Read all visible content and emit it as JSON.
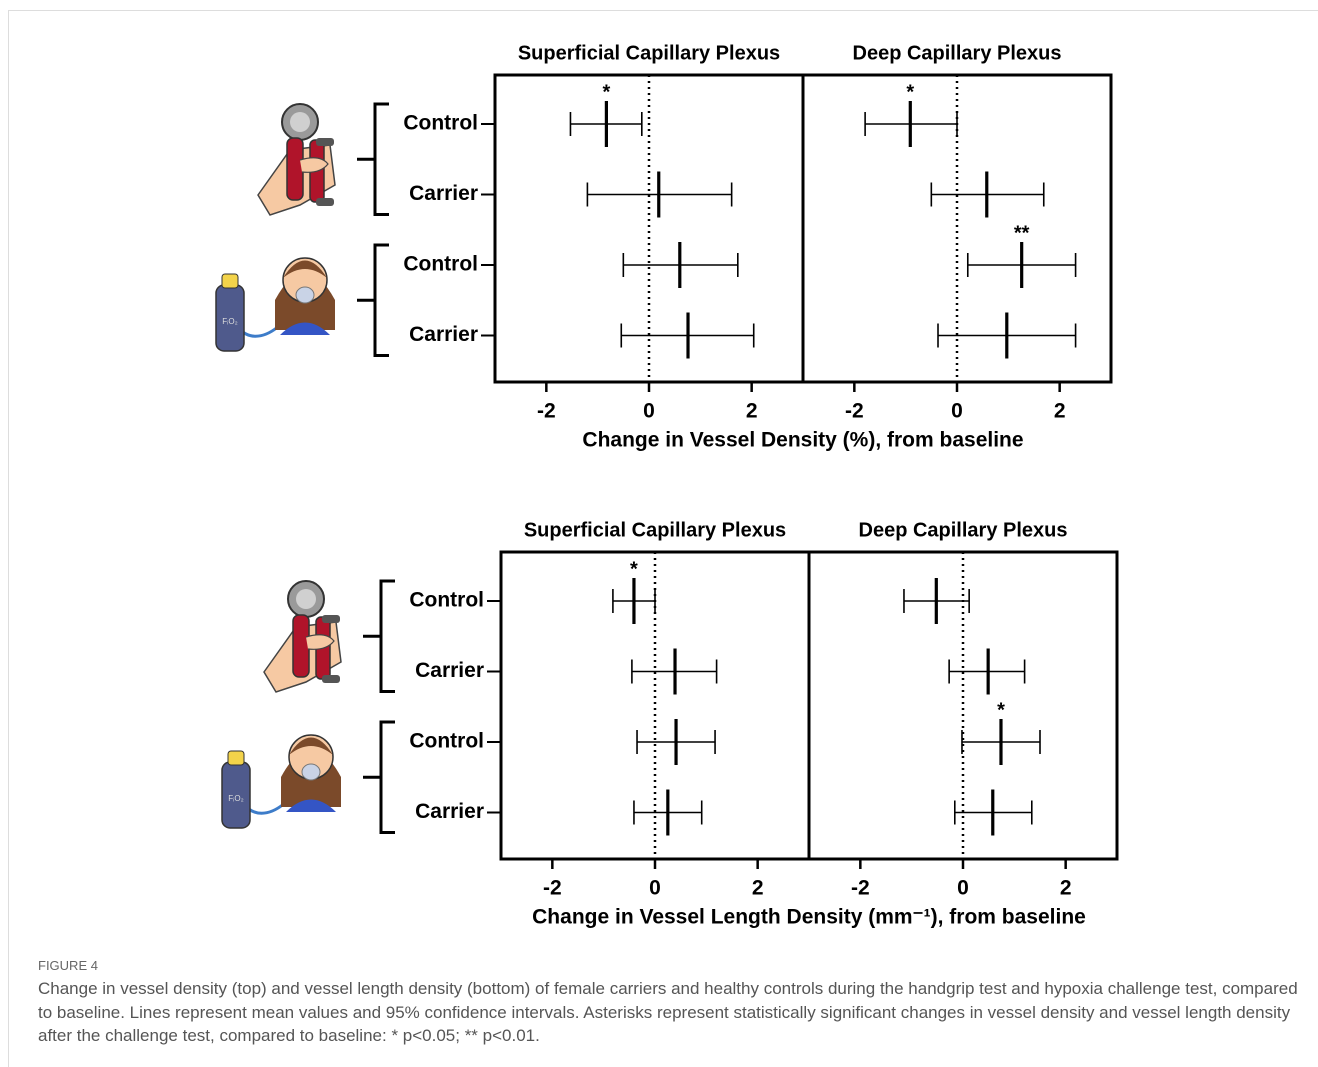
{
  "chart_data": [
    {
      "type": "forest",
      "xlabel": "Change in Vessel Density (%), from baseline",
      "categories": [
        "Control",
        "Carrier",
        "Control",
        "Carrier"
      ],
      "xlim": [
        -3,
        3
      ],
      "xticks": [
        -2,
        0,
        2
      ],
      "zero_line": true,
      "color": "#000000",
      "panels": [
        {
          "title": "Superficial Capillary Plexus",
          "values": [
            -0.83,
            0.19,
            0.6,
            0.76
          ],
          "lower": [
            -1.53,
            -1.2,
            -0.5,
            -0.54
          ],
          "upper": [
            -0.14,
            1.61,
            1.73,
            2.04
          ],
          "annotations": [
            "*",
            null,
            null,
            null
          ]
        },
        {
          "title": "Deep Capillary Plexus",
          "values": [
            -0.91,
            0.58,
            1.26,
            0.97
          ],
          "lower": [
            -1.79,
            -0.5,
            0.21,
            -0.37
          ],
          "upper": [
            0,
            1.69,
            2.31,
            2.31
          ],
          "annotations": [
            "*",
            null,
            "**",
            null
          ]
        }
      ]
    },
    {
      "type": "forest",
      "xlabel": "Change in Vessel Length Density (mm⁻¹), from baseline",
      "categories": [
        "Control",
        "Carrier",
        "Control",
        "Carrier"
      ],
      "xlim": [
        -3,
        3
      ],
      "xticks": [
        -2,
        0,
        2
      ],
      "zero_line": true,
      "color": "#000000",
      "panels": [
        {
          "title": "Superficial Capillary Plexus",
          "values": [
            -0.41,
            0.39,
            0.41,
            0.25
          ],
          "lower": [
            -0.82,
            -0.45,
            -0.35,
            -0.41
          ],
          "upper": [
            0,
            1.2,
            1.17,
            0.91
          ],
          "annotations": [
            "*",
            null,
            null,
            null
          ]
        },
        {
          "title": "Deep Capillary Plexus",
          "values": [
            -0.52,
            0.49,
            0.74,
            0.58
          ],
          "lower": [
            -1.15,
            -0.27,
            -0.02,
            -0.16
          ],
          "upper": [
            0.12,
            1.2,
            1.5,
            1.34
          ],
          "annotations": [
            null,
            null,
            "*",
            null
          ]
        }
      ]
    }
  ],
  "figure": {
    "label": "FIGURE 4",
    "caption": "Change in vessel density (top) and vessel length density (bottom) of female carriers and healthy controls during the handgrip test and hypoxia challenge test, compared to baseline. Lines represent mean values and 95% confidence intervals. Asterisks represent statistically significant changes in vessel density and vessel length density after the challenge test, compared to baseline: * p<0.05; ** p<0.01.",
    "icon_label": "FᵢO₂"
  }
}
